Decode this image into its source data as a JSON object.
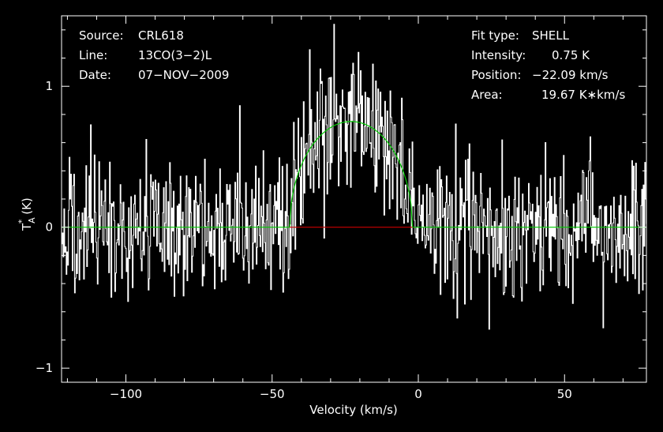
{
  "chart_data": {
    "type": "line",
    "xlabel": "Velocity (km/s)",
    "ylabel": "T",
    "ylabel_sub": "A",
    "ylabel_sup": "*",
    "ylabel_unit": "(K)",
    "xlim": [
      -122,
      78
    ],
    "ylim": [
      -1.1,
      1.5
    ],
    "x_ticks": [
      -100,
      -50,
      0,
      50
    ],
    "x_tick_labels": [
      "−100",
      "−50",
      "0",
      "50"
    ],
    "y_ticks": [
      -1,
      0,
      1
    ],
    "y_tick_labels": [
      "−1",
      "0",
      "1"
    ],
    "grid": false,
    "info_left": [
      {
        "key": "Source:",
        "value": "CRL618"
      },
      {
        "key": "Line:",
        "value": "13CO(3−2)L"
      },
      {
        "key": "Date:",
        "value": "07−NOV−2009"
      }
    ],
    "info_right": [
      {
        "key": "Fit type:",
        "value": "SHELL"
      },
      {
        "key": "Intensity:",
        "value": "0.75 K"
      },
      {
        "key": "Position:",
        "value": "−22.09 km/s"
      },
      {
        "key": "Area:",
        "value": "19.67 K∗km/s"
      }
    ],
    "series": [
      {
        "type": "noisy-spectrum",
        "color": "#ffffff",
        "channel_width_kms": 0.26,
        "noise_rms_K": 0.24,
        "line_center_kms": -22.09,
        "line_peak_K": 0.75,
        "line_range_kms": [
          -44,
          -2
        ]
      },
      {
        "type": "shell-fit",
        "color": "#00cc00",
        "peak_K": 0.75,
        "center_kms": -22.09,
        "range_kms": [
          -44,
          -2
        ],
        "area_K_kms": 19.67
      },
      {
        "type": "window-baseline",
        "color": "#cc0000",
        "range_kms": [
          -44,
          -2
        ],
        "value_K": 0
      }
    ]
  }
}
